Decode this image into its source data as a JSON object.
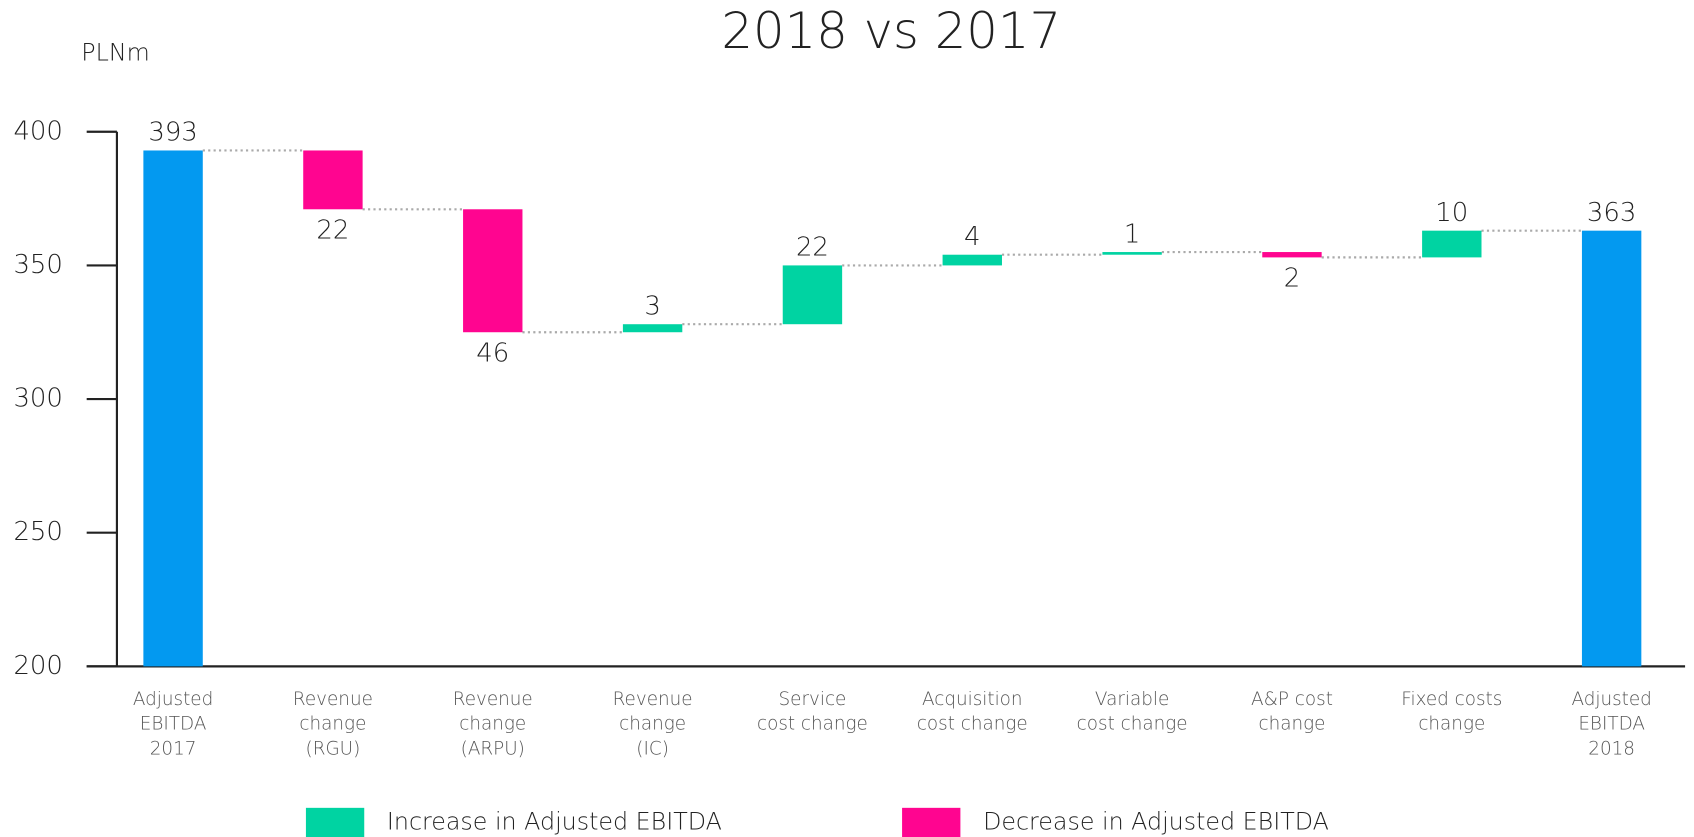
{
  "chart_data": {
    "type": "waterfall",
    "title": "2018 vs 2017",
    "y_label": "PLNm",
    "categories": [
      [
        "Adjusted",
        "EBITDA",
        "2017"
      ],
      [
        "Revenue",
        "change",
        "(RGU)"
      ],
      [
        "Revenue",
        "change",
        "(ARPU)"
      ],
      [
        "Revenue",
        "change",
        "(IC)"
      ],
      [
        "Service",
        "cost change"
      ],
      [
        "Acquisition",
        "cost change"
      ],
      [
        "Variable",
        "cost change"
      ],
      [
        "A&P cost",
        "change"
      ],
      [
        "Fixed costs",
        "change"
      ],
      [
        "Adjusted",
        "EBITDA",
        "2018"
      ]
    ],
    "values": [
      393,
      22,
      46,
      3,
      22,
      4,
      1,
      2,
      10,
      363
    ],
    "measures": [
      "total",
      "decrease",
      "decrease",
      "increase",
      "increase",
      "increase",
      "increase",
      "decrease",
      "increase",
      "total"
    ],
    "colors": {
      "total": "#0399f0",
      "increase": "#00d3a2",
      "decrease": "#ff0590"
    },
    "legend": [
      {
        "name": "Increase in Adjusted EBITDA",
        "measure": "increase"
      },
      {
        "name": "Decrease in Adjusted EBITDA",
        "measure": "decrease"
      }
    ],
    "ylim": [
      200,
      400
    ],
    "yticks": [
      200,
      250,
      300,
      350,
      400
    ]
  }
}
